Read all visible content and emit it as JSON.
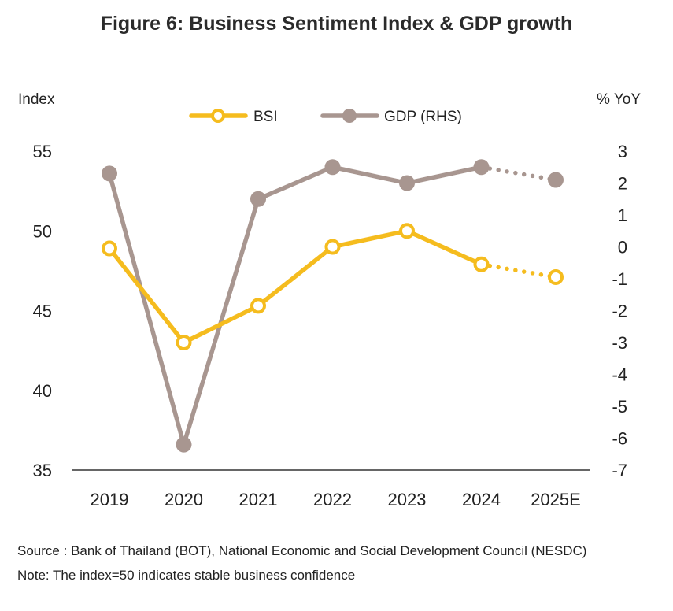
{
  "title": "Figure 6: Business Sentiment Index & GDP growth",
  "source": "Source : Bank of Thailand (BOT), National Economic and Social Development Council (NESDC)",
  "note": "Note: The index=50 indicates stable business confidence",
  "colors": {
    "bsi": "#F5BC1E",
    "gdp": "#A89690",
    "axis": "#333333"
  },
  "chart_data": {
    "type": "line",
    "categories": [
      "2019",
      "2020",
      "2021",
      "2022",
      "2023",
      "2024",
      "2025E"
    ],
    "ylabel": "Index",
    "y2label": "% YoY",
    "ylim": [
      35,
      55
    ],
    "y2lim": [
      -7,
      3
    ],
    "yticks": [
      "55",
      "50",
      "45",
      "40",
      "35"
    ],
    "y2ticks": [
      "3",
      "2",
      "1",
      "0",
      "-1",
      "-2",
      "-3",
      "-4",
      "-5",
      "-6",
      "-7"
    ],
    "legend_position": "top-center",
    "series": [
      {
        "name": "BSI",
        "axis": "left",
        "values": [
          48.9,
          43.0,
          45.3,
          49.0,
          50.0,
          47.9,
          47.1
        ],
        "dashed_from_index": 5
      },
      {
        "name": "GDP (RHS)",
        "axis": "right",
        "values": [
          2.3,
          -6.2,
          1.5,
          2.5,
          2.0,
          2.5,
          2.1
        ],
        "dashed_from_index": 5
      }
    ]
  }
}
